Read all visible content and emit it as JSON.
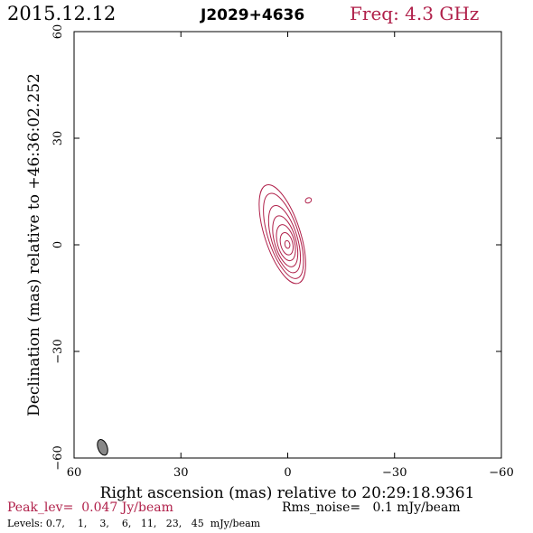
{
  "header": {
    "date": "2015.12.12",
    "source": "J2029+4636",
    "freq": "Freq: 4.3 GHz"
  },
  "footer": {
    "peak": "Peak_lev=  0.047 Jy/beam",
    "rms": "Rms_noise=   0.1 mJy/beam",
    "levels": "Levels: 0.7,    1,    3,    6,   11,   23,   45  mJy/beam"
  },
  "colors": {
    "accent": "#b0204a",
    "axis": "#000000",
    "beam_fill": "#888888"
  },
  "chart_data": {
    "type": "contour",
    "xlabel": "Right ascension (mas) relative to 20:29:18.9361",
    "ylabel": "Declination (mas) relative to +46:36:02.252",
    "xlim": [
      60,
      -60
    ],
    "ylim": [
      -60,
      60
    ],
    "xticks": [
      60,
      30,
      0,
      -30,
      -60
    ],
    "xtick_labels": [
      "60",
      "30",
      "0",
      "−30",
      "−60"
    ],
    "yticks": [
      -60,
      -30,
      0,
      30,
      60
    ],
    "ytick_labels": [
      "−60",
      "−30",
      "0",
      "30",
      "60"
    ],
    "peak_jy_per_beam": 0.047,
    "rms_mjy_per_beam": 0.1,
    "contour_levels_mjy": [
      0.7,
      1,
      3,
      6,
      11,
      23,
      45
    ],
    "contours": [
      {
        "level": 0.7,
        "cx": 1.5,
        "cy": 3.0,
        "rx": 14.5,
        "ry": 5.0,
        "angle": 72
      },
      {
        "level": 1,
        "cx": 1.2,
        "cy": 2.5,
        "rx": 12.5,
        "ry": 4.3,
        "angle": 72
      },
      {
        "level": 3,
        "cx": 0.9,
        "cy": 1.6,
        "rx": 9.8,
        "ry": 3.6,
        "angle": 73
      },
      {
        "level": 6,
        "cx": 0.7,
        "cy": 1.0,
        "rx": 7.4,
        "ry": 3.0,
        "angle": 74
      },
      {
        "level": 11,
        "cx": 0.5,
        "cy": 0.6,
        "rx": 5.2,
        "ry": 2.4,
        "angle": 75
      },
      {
        "level": 23,
        "cx": 0.3,
        "cy": 0.3,
        "rx": 3.2,
        "ry": 1.7,
        "angle": 76
      },
      {
        "level": 45,
        "cx": 0.1,
        "cy": 0.1,
        "rx": 1.1,
        "ry": 0.7,
        "angle": 78
      }
    ],
    "extra_component": {
      "level": 0.7,
      "cx": -5.8,
      "cy": 12.5,
      "rx": 0.7,
      "ry": 0.9,
      "angle": 60
    },
    "beam": {
      "cx": 52.0,
      "cy": -57.0,
      "rx": 2.3,
      "ry": 1.3,
      "angle": 70
    }
  }
}
